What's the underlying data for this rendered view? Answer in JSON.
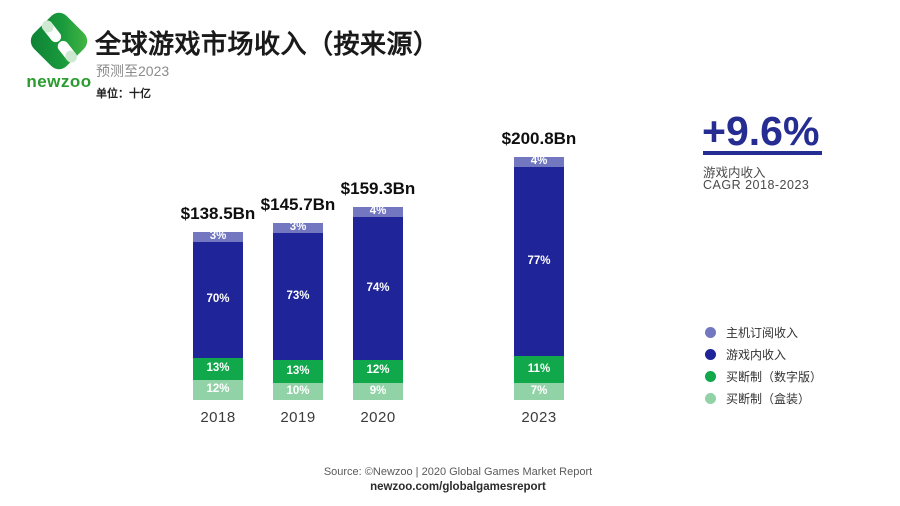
{
  "header": {
    "logo_text": "newzoo",
    "title": "全球游戏市场收入（按来源）",
    "subtitle": "预测至2023",
    "unit_label": "单位：十亿"
  },
  "chart_data": {
    "type": "bar",
    "subtype": "stacked-percent",
    "title": "全球游戏市场收入（按来源）",
    "unit": "十亿 (Bn USD)",
    "categories": [
      "2018",
      "2019",
      "2020",
      "2023"
    ],
    "totals_label": [
      "$138.5Bn",
      "$145.7Bn",
      "$159.3Bn",
      "$200.8Bn"
    ],
    "totals_bn": [
      138.5,
      145.7,
      159.3,
      200.8
    ],
    "series": [
      {
        "name": "主机订阅收入",
        "color": "#7277bf",
        "values_pct": [
          3,
          3,
          4,
          4
        ]
      },
      {
        "name": "游戏内收入",
        "color": "#1f2498",
        "values_pct": [
          70,
          73,
          74,
          77
        ]
      },
      {
        "name": "买断制（数字版）",
        "color": "#11a74b",
        "values_pct": [
          13,
          13,
          12,
          11
        ]
      },
      {
        "name": "买断制（盒装）",
        "color": "#92d2a7",
        "values_pct": [
          12,
          10,
          9,
          7
        ]
      }
    ],
    "legend_position": "right",
    "grid": false
  },
  "annotation": {
    "value": "+9.6%",
    "line1": "游戏内收入",
    "line2": "CAGR 2018-2023",
    "color": "#262d92"
  },
  "footer": {
    "source": "Source: ©Newzoo | 2020 Global Games Market Report",
    "link": "newzoo.com/globalgamesreport"
  }
}
